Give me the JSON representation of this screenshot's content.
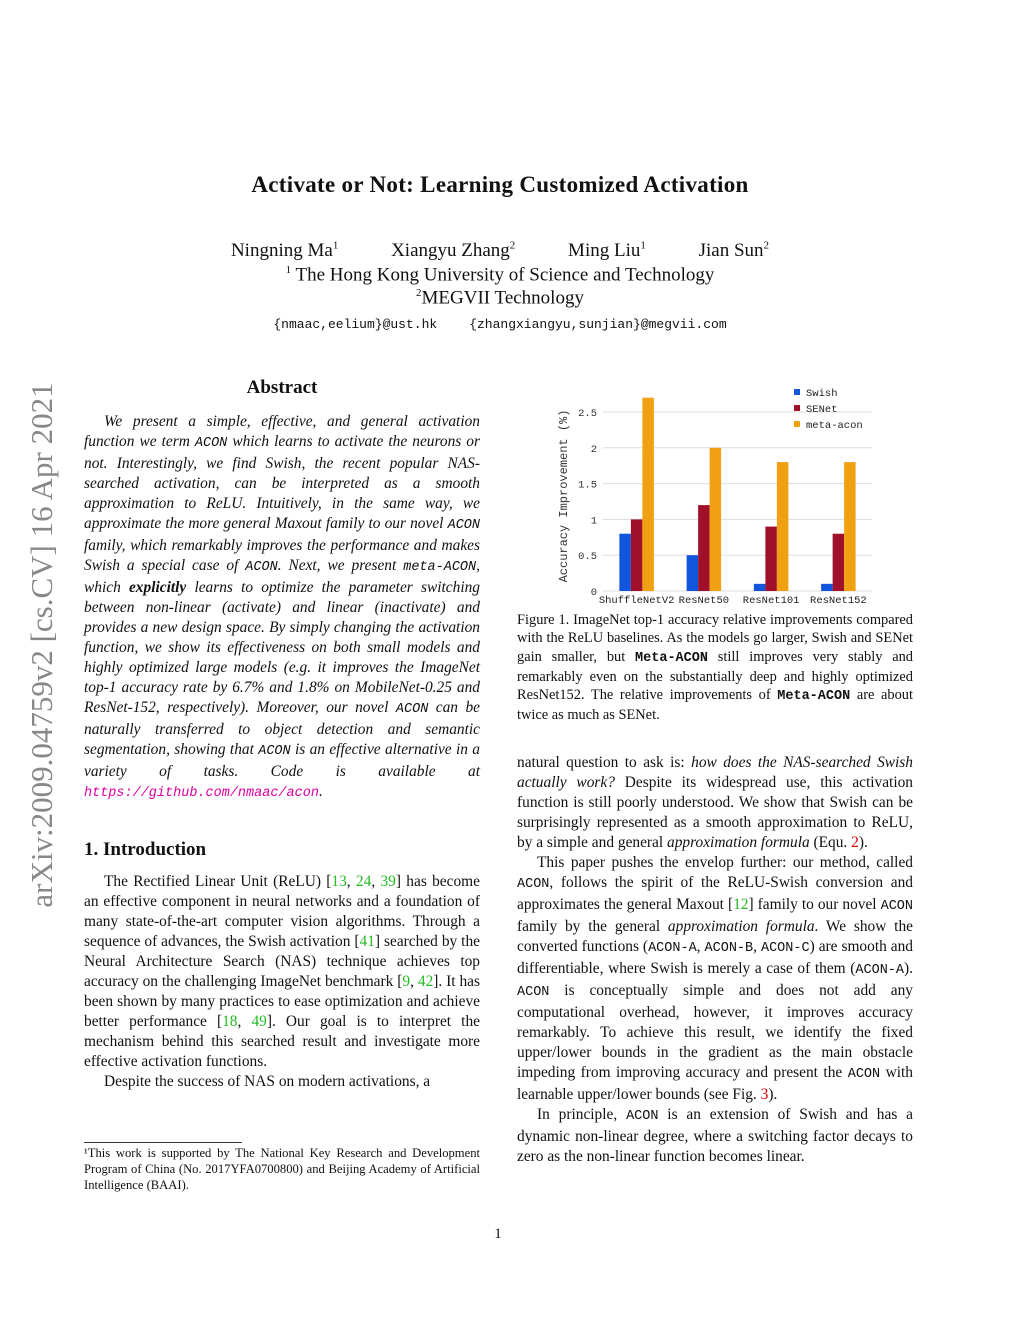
{
  "title": "Activate or Not: Learning Customized Activation",
  "authors": [
    {
      "name": "Ningning Ma",
      "sup": "1"
    },
    {
      "name": "Xiangyu Zhang",
      "sup": "2"
    },
    {
      "name": "Ming Liu",
      "sup": "1"
    },
    {
      "name": "Jian Sun",
      "sup": "2"
    }
  ],
  "affiliations": [
    {
      "sup": "1",
      "text": " The Hong Kong University of Science and Technology"
    },
    {
      "sup": "2",
      "text": "MEGVII Technology"
    }
  ],
  "emails": [
    "{nmaac,eelium}@ust.hk",
    "{zhangxiangyu,sunjian}@megvii.com"
  ],
  "arxiv_id": "arXiv:2009.04759v2  [cs.CV]  16 Apr 2021",
  "abstract_heading": "Abstract",
  "abstract": [
    [
      "i",
      "We present a simple, effective, and general activation function we term "
    ],
    [
      "mi",
      "ACON"
    ],
    [
      "i",
      " which learns to activate the neurons or not. Interestingly, we find Swish, the recent popular NAS-searched activation, can be interpreted as a smooth approximation to ReLU. Intuitively, in the same way, we approximate the more general Maxout family to our novel "
    ],
    [
      "mi",
      "ACON"
    ],
    [
      "i",
      " family, which remarkably improves the performance and makes Swish a special case of "
    ],
    [
      "mi",
      "ACON"
    ],
    [
      "i",
      ". Next, we present "
    ],
    [
      "mi",
      "meta-ACON"
    ],
    [
      "i",
      ", which "
    ],
    [
      "b",
      "explicitly"
    ],
    [
      "i",
      " learns to optimize the parameter switching between non-linear (activate) and linear (inactivate) and provides a new design space. By simply changing the activation function, we show its effectiveness on both small models and highly optimized large models (e.g. it improves the ImageNet top-1 accuracy rate by 6.7% and 1.8% on MobileNet-0.25 and ResNet-152, respectively). Moreover, our novel "
    ],
    [
      "mi",
      "ACON"
    ],
    [
      "i",
      " can be naturally transferred to object detection and semantic segmentation, showing that "
    ],
    [
      "mi",
      "ACON"
    ],
    [
      "i",
      " is an effective alternative in a variety of tasks. Code is available at "
    ],
    [
      "l",
      "https://github.com/nmaac/acon"
    ],
    [
      "i",
      "."
    ]
  ],
  "intro_heading": "1. Introduction",
  "intro": [
    [
      [
        "",
        "The Rectified Linear Unit (ReLU) ["
      ],
      [
        "c",
        "13"
      ],
      [
        "",
        ", "
      ],
      [
        "c",
        "24"
      ],
      [
        "",
        ", "
      ],
      [
        "c",
        "39"
      ],
      [
        "",
        "] has become an effective component in neural networks and a foundation of many state-of-the-art computer vision algorithms. Through a sequence of advances, the Swish activation ["
      ],
      [
        "c",
        "41"
      ],
      [
        "",
        "] searched by the Neural Architecture Search (NAS) technique achieves top accuracy on the challenging ImageNet benchmark ["
      ],
      [
        "c",
        "9"
      ],
      [
        "",
        ", "
      ],
      [
        "c",
        "42"
      ],
      [
        "",
        "]. It has been shown by many practices to ease optimization and achieve better performance ["
      ],
      [
        "c",
        "18"
      ],
      [
        "",
        ", "
      ],
      [
        "c",
        "49"
      ],
      [
        "",
        "]. Our goal is to interpret the mechanism behind this searched result and investigate more effective activation functions."
      ]
    ],
    [
      [
        "",
        "Despite the success of NAS on modern activations, a"
      ]
    ]
  ],
  "footnote": [
    [
      "",
      "¹This work is supported by The National Key Research and Development Program of China (No. 2017YFA0700800) and Beijing Academy of Artificial Intelligence (BAAI)."
    ]
  ],
  "figure_caption": [
    [
      "",
      "Figure 1. ImageNet top-1 accuracy relative improvements compared with the ReLU baselines. As the models go larger, Swish and SENet gain smaller, but "
    ],
    [
      "mb",
      "Meta-ACON"
    ],
    [
      "",
      " still improves very stably and remarkably even on the substantially deep and highly optimized ResNet152. The relative improvements of "
    ],
    [
      "mb",
      "Meta-ACON"
    ],
    [
      "",
      " are about twice as much as SENet."
    ]
  ],
  "right_text": [
    [
      [
        "",
        "natural question to ask is: "
      ],
      [
        "i",
        "how does the NAS-searched Swish actually work?"
      ],
      [
        "",
        " Despite its widespread use, this activation function is still poorly understood. We show that Swish can be surprisingly represented as a smooth approximation to ReLU, by a simple and general "
      ],
      [
        "i",
        "approximation formula"
      ],
      [
        "",
        " (Equ. "
      ],
      [
        "r",
        "2"
      ],
      [
        "",
        ")."
      ]
    ],
    [
      [
        "",
        "This paper pushes the envelop further: our method, called "
      ],
      [
        "m",
        "ACON"
      ],
      [
        "",
        ", follows the spirit of the ReLU-Swish conversion and approximates the general Maxout ["
      ],
      [
        "c",
        "12"
      ],
      [
        "",
        "] family to our novel "
      ],
      [
        "m",
        "ACON"
      ],
      [
        "",
        " family by the general "
      ],
      [
        "i",
        "approximation formula"
      ],
      [
        "",
        ". We show the converted functions ("
      ],
      [
        "m",
        "ACON-A"
      ],
      [
        "",
        ", "
      ],
      [
        "m",
        "ACON-B"
      ],
      [
        "",
        ", "
      ],
      [
        "m",
        "ACON-C"
      ],
      [
        "",
        ") are smooth and differentiable, where Swish is merely a case of them ("
      ],
      [
        "m",
        "ACON-A"
      ],
      [
        "",
        "). "
      ],
      [
        "m",
        "ACON"
      ],
      [
        "",
        " is conceptually simple and does not add any computational overhead, however, it improves accuracy remarkably. To achieve this result, we identify the fixed upper/lower bounds in the gradient as the main obstacle impeding from improving accuracy and present the "
      ],
      [
        "m",
        "ACON"
      ],
      [
        "",
        " with learnable upper/lower bounds (see Fig. "
      ],
      [
        "r",
        "3"
      ],
      [
        "",
        ")."
      ]
    ],
    [
      [
        "",
        "In principle, "
      ],
      [
        "m",
        "ACON"
      ],
      [
        "",
        " is an extension of Swish and has a dynamic non-linear degree, where a switching factor decays to zero as the non-linear function becomes linear."
      ]
    ]
  ],
  "page_number": "1",
  "chart_data": {
    "type": "bar",
    "categories": [
      "ShuffleNetV2",
      "ResNet50",
      "ResNet101",
      "ResNet152"
    ],
    "series": [
      {
        "name": "Swish",
        "color": "#1155dd",
        "values": [
          0.8,
          0.5,
          0.1,
          0.1
        ]
      },
      {
        "name": "SENet",
        "color": "#a0102a",
        "values": [
          1.0,
          1.2,
          0.9,
          0.8
        ]
      },
      {
        "name": "meta-acon",
        "color": "#f0a010",
        "values": [
          2.7,
          2.0,
          1.8,
          1.8
        ]
      }
    ],
    "ylabel": "Accuracy Improvement (%)",
    "xlabel": "",
    "ylim": [
      0,
      2.7
    ],
    "yticks": [
      "0",
      "0.5",
      "1",
      "1.5",
      "2",
      "2.5"
    ],
    "grid": true,
    "legend": "top-right"
  }
}
